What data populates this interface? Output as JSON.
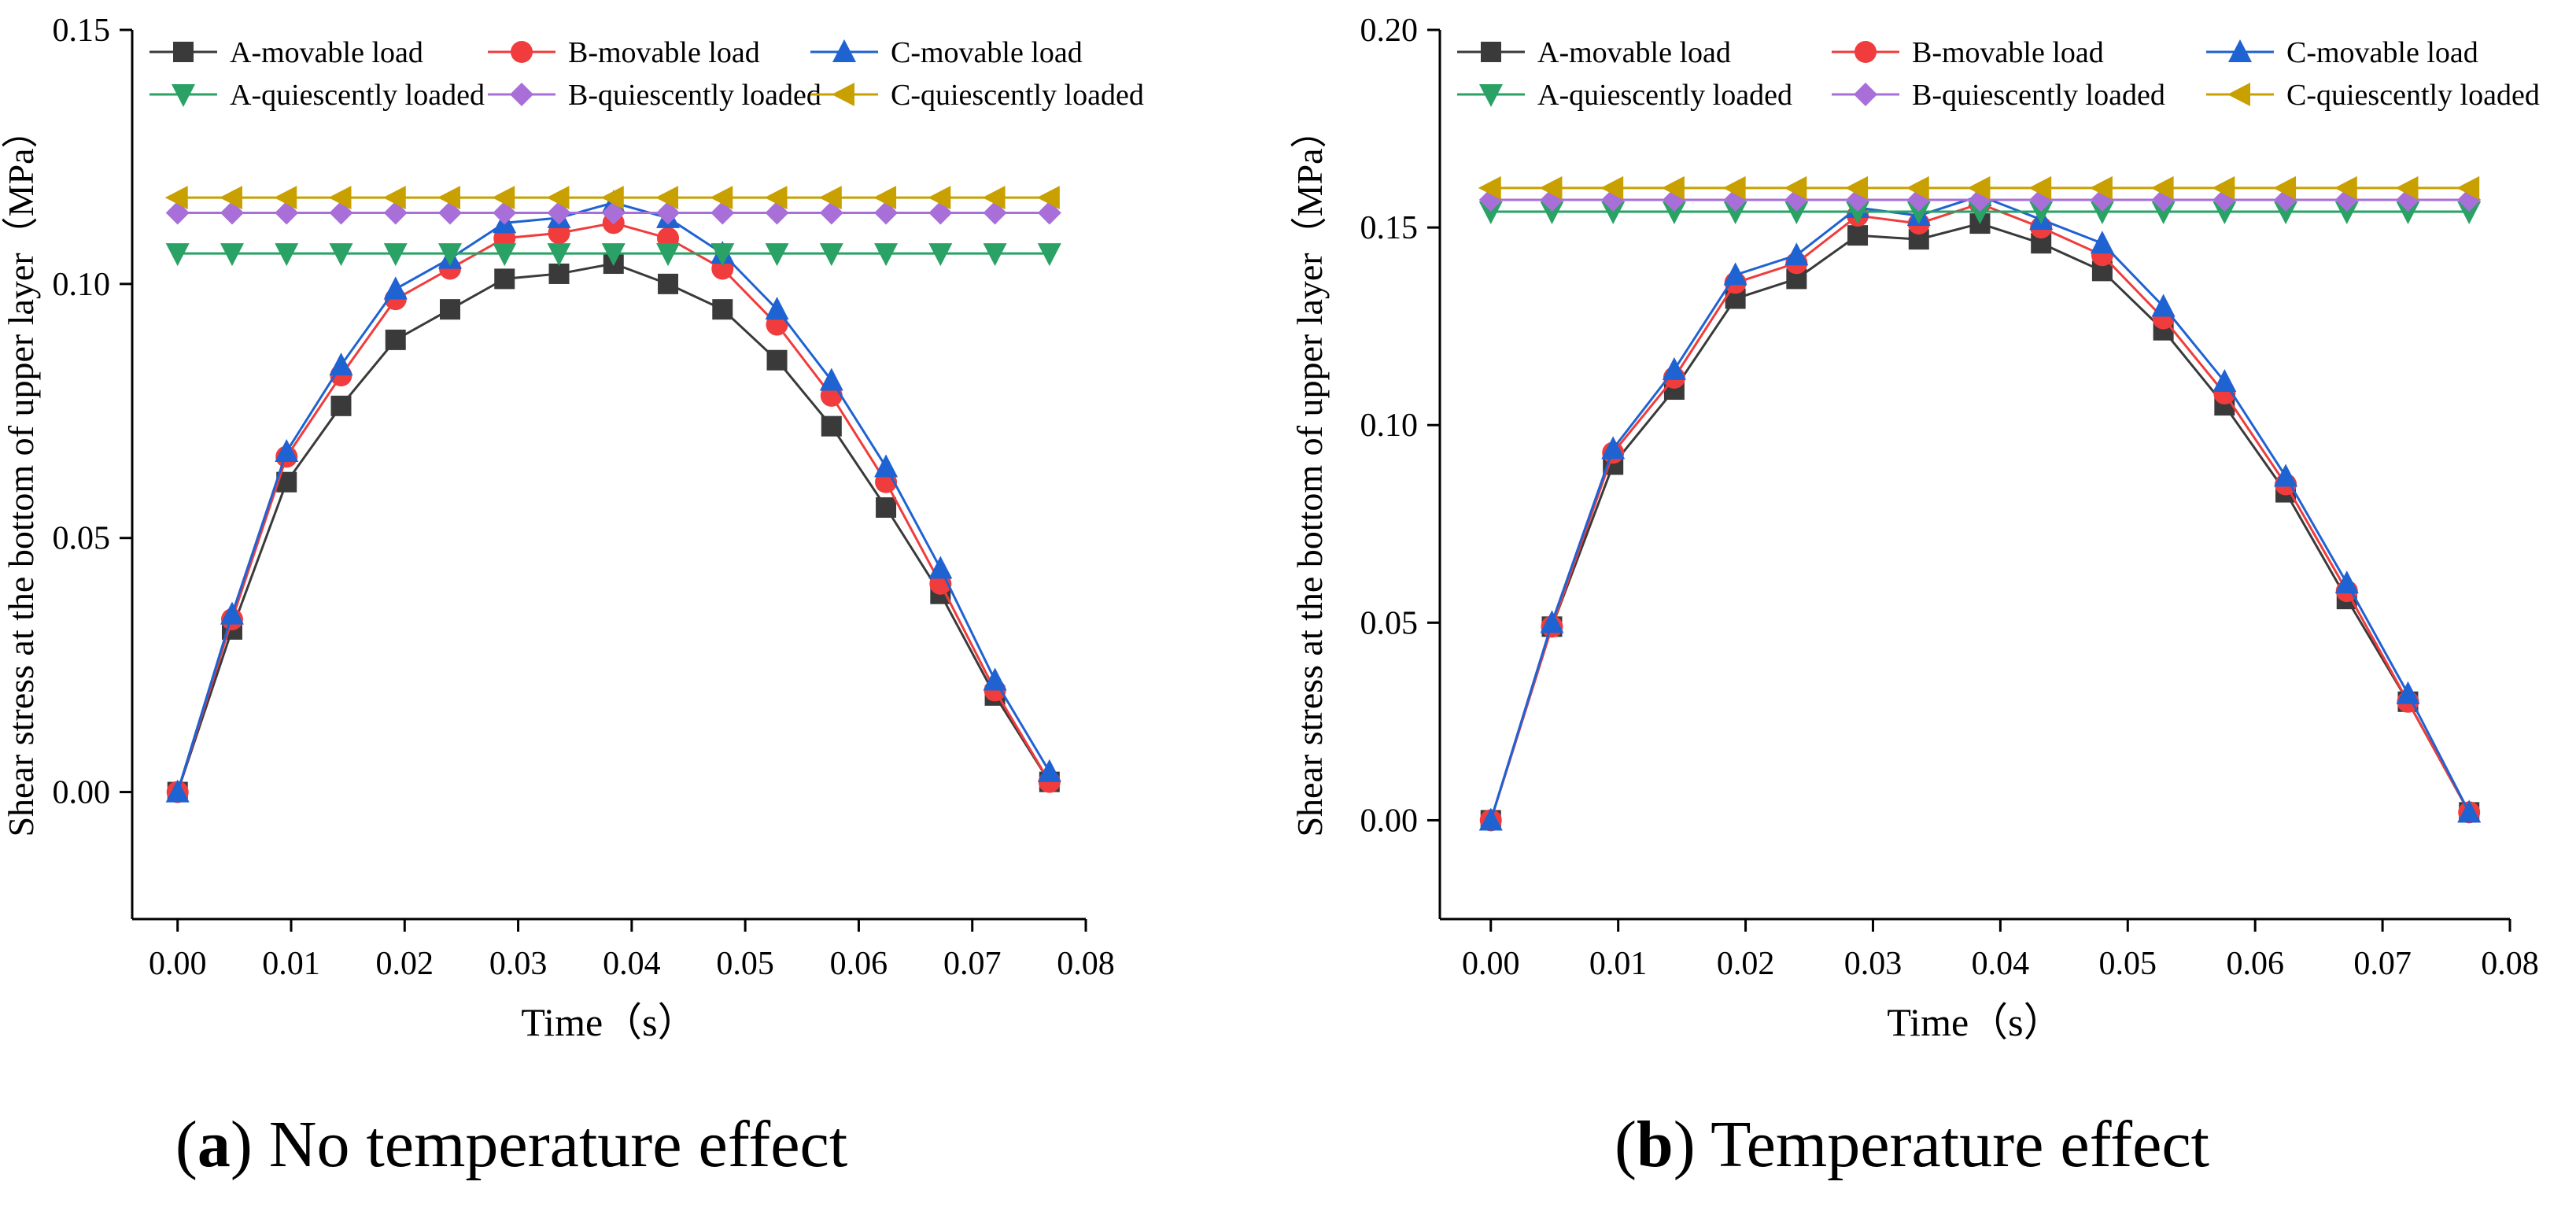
{
  "panels": [
    {
      "caption": {
        "open": "(",
        "letter": "a",
        "close": ")",
        "text": " No temperature effect"
      }
    },
    {
      "caption": {
        "open": "(",
        "letter": "b",
        "close": ")",
        "text": " Temperature effect"
      }
    }
  ],
  "chart_data": [
    {
      "type": "line",
      "title": "",
      "xlabel": "Time（s）",
      "ylabel": "Shear stress at the bottom of upper layer（MPa）",
      "xlim": [
        -0.004,
        0.08
      ],
      "ylim": [
        -0.025,
        0.15
      ],
      "xticks": [
        0.0,
        0.01,
        0.02,
        0.03,
        0.04,
        0.05,
        0.06,
        0.07,
        0.08
      ],
      "yticks": [
        0.0,
        0.05,
        0.1,
        0.15
      ],
      "xtick_labels": [
        "0.00",
        "0.01",
        "0.02",
        "0.03",
        "0.04",
        "0.05",
        "0.06",
        "0.07",
        "0.08"
      ],
      "ytick_labels": [
        "0.00",
        "0.05",
        "0.10",
        "0.15"
      ],
      "x": [
        0,
        0.0048,
        0.0096,
        0.0144,
        0.0192,
        0.024,
        0.0288,
        0.0336,
        0.0384,
        0.0432,
        0.048,
        0.0528,
        0.0576,
        0.0624,
        0.0672,
        0.072,
        0.0768
      ],
      "legend_position": "top",
      "series": [
        {
          "name": "A-movable load",
          "color": "#3a3a3a",
          "marker": "square",
          "values": [
            0.0,
            0.032,
            0.061,
            0.076,
            0.089,
            0.095,
            0.101,
            0.102,
            0.104,
            0.1,
            0.095,
            0.085,
            0.072,
            0.056,
            0.039,
            0.019,
            0.002
          ]
        },
        {
          "name": "B-movable load",
          "color": "#f03c3c",
          "marker": "circle",
          "values": [
            0.0,
            0.034,
            0.066,
            0.082,
            0.097,
            0.103,
            0.109,
            0.11,
            0.112,
            0.109,
            0.103,
            0.092,
            0.078,
            0.061,
            0.041,
            0.02,
            0.002
          ]
        },
        {
          "name": "C-movable load",
          "color": "#1f62d2",
          "marker": "triangle-up",
          "values": [
            0.0,
            0.035,
            0.067,
            0.084,
            0.099,
            0.105,
            0.112,
            0.113,
            0.116,
            0.113,
            0.106,
            0.095,
            0.081,
            0.064,
            0.044,
            0.022,
            0.004
          ]
        },
        {
          "name": "A-quiescently loaded",
          "color": "#2aa165",
          "marker": "triangle-down",
          "values": [
            0.106,
            0.106,
            0.106,
            0.106,
            0.106,
            0.106,
            0.106,
            0.106,
            0.106,
            0.106,
            0.106,
            0.106,
            0.106,
            0.106,
            0.106,
            0.106,
            0.106
          ]
        },
        {
          "name": "B-quiescently loaded",
          "color": "#a96fd8",
          "marker": "diamond",
          "values": [
            0.114,
            0.114,
            0.114,
            0.114,
            0.114,
            0.114,
            0.114,
            0.114,
            0.114,
            0.114,
            0.114,
            0.114,
            0.114,
            0.114,
            0.114,
            0.114,
            0.114
          ]
        },
        {
          "name": "C-quiescently loaded",
          "color": "#c8a000",
          "marker": "triangle-left",
          "values": [
            0.117,
            0.117,
            0.117,
            0.117,
            0.117,
            0.117,
            0.117,
            0.117,
            0.117,
            0.117,
            0.117,
            0.117,
            0.117,
            0.117,
            0.117,
            0.117,
            0.117
          ]
        }
      ]
    },
    {
      "type": "line",
      "title": "",
      "xlabel": "Time（s）",
      "ylabel": "Shear stress at the bottom of upper layer（MPa）",
      "xlim": [
        -0.004,
        0.08
      ],
      "ylim": [
        -0.025,
        0.2
      ],
      "xticks": [
        0.0,
        0.01,
        0.02,
        0.03,
        0.04,
        0.05,
        0.06,
        0.07,
        0.08
      ],
      "yticks": [
        0.0,
        0.05,
        0.1,
        0.15,
        0.2
      ],
      "xtick_labels": [
        "0.00",
        "0.01",
        "0.02",
        "0.03",
        "0.04",
        "0.05",
        "0.06",
        "0.07",
        "0.08"
      ],
      "ytick_labels": [
        "0.00",
        "0.05",
        "0.10",
        "0.15",
        "0.20"
      ],
      "x": [
        0,
        0.0048,
        0.0096,
        0.0144,
        0.0192,
        0.024,
        0.0288,
        0.0336,
        0.0384,
        0.0432,
        0.048,
        0.0528,
        0.0576,
        0.0624,
        0.0672,
        0.072,
        0.0768
      ],
      "legend_position": "top",
      "series": [
        {
          "name": "A-movable load",
          "color": "#3a3a3a",
          "marker": "square",
          "values": [
            0.0,
            0.049,
            0.09,
            0.109,
            0.132,
            0.137,
            0.148,
            0.147,
            0.151,
            0.146,
            0.139,
            0.124,
            0.105,
            0.083,
            0.056,
            0.03,
            0.002
          ]
        },
        {
          "name": "B-movable load",
          "color": "#f03c3c",
          "marker": "circle",
          "values": [
            0.0,
            0.049,
            0.093,
            0.112,
            0.136,
            0.141,
            0.153,
            0.151,
            0.156,
            0.15,
            0.143,
            0.127,
            0.108,
            0.085,
            0.058,
            0.03,
            0.002
          ]
        },
        {
          "name": "C-movable load",
          "color": "#1f62d2",
          "marker": "triangle-up",
          "values": [
            0.0,
            0.05,
            0.094,
            0.114,
            0.138,
            0.143,
            0.155,
            0.153,
            0.158,
            0.152,
            0.146,
            0.13,
            0.111,
            0.087,
            0.06,
            0.032,
            0.002
          ]
        },
        {
          "name": "A-quiescently loaded",
          "color": "#2aa165",
          "marker": "triangle-down",
          "values": [
            0.154,
            0.154,
            0.154,
            0.154,
            0.154,
            0.154,
            0.154,
            0.154,
            0.154,
            0.154,
            0.154,
            0.154,
            0.154,
            0.154,
            0.154,
            0.154,
            0.154
          ]
        },
        {
          "name": "B-quiescently loaded",
          "color": "#a96fd8",
          "marker": "diamond",
          "values": [
            0.157,
            0.157,
            0.157,
            0.157,
            0.157,
            0.157,
            0.157,
            0.157,
            0.157,
            0.157,
            0.157,
            0.157,
            0.157,
            0.157,
            0.157,
            0.157,
            0.157
          ]
        },
        {
          "name": "C-quiescently loaded",
          "color": "#c8a000",
          "marker": "triangle-left",
          "values": [
            0.16,
            0.16,
            0.16,
            0.16,
            0.16,
            0.16,
            0.16,
            0.16,
            0.16,
            0.16,
            0.16,
            0.16,
            0.16,
            0.16,
            0.16,
            0.16,
            0.16
          ]
        }
      ]
    }
  ]
}
